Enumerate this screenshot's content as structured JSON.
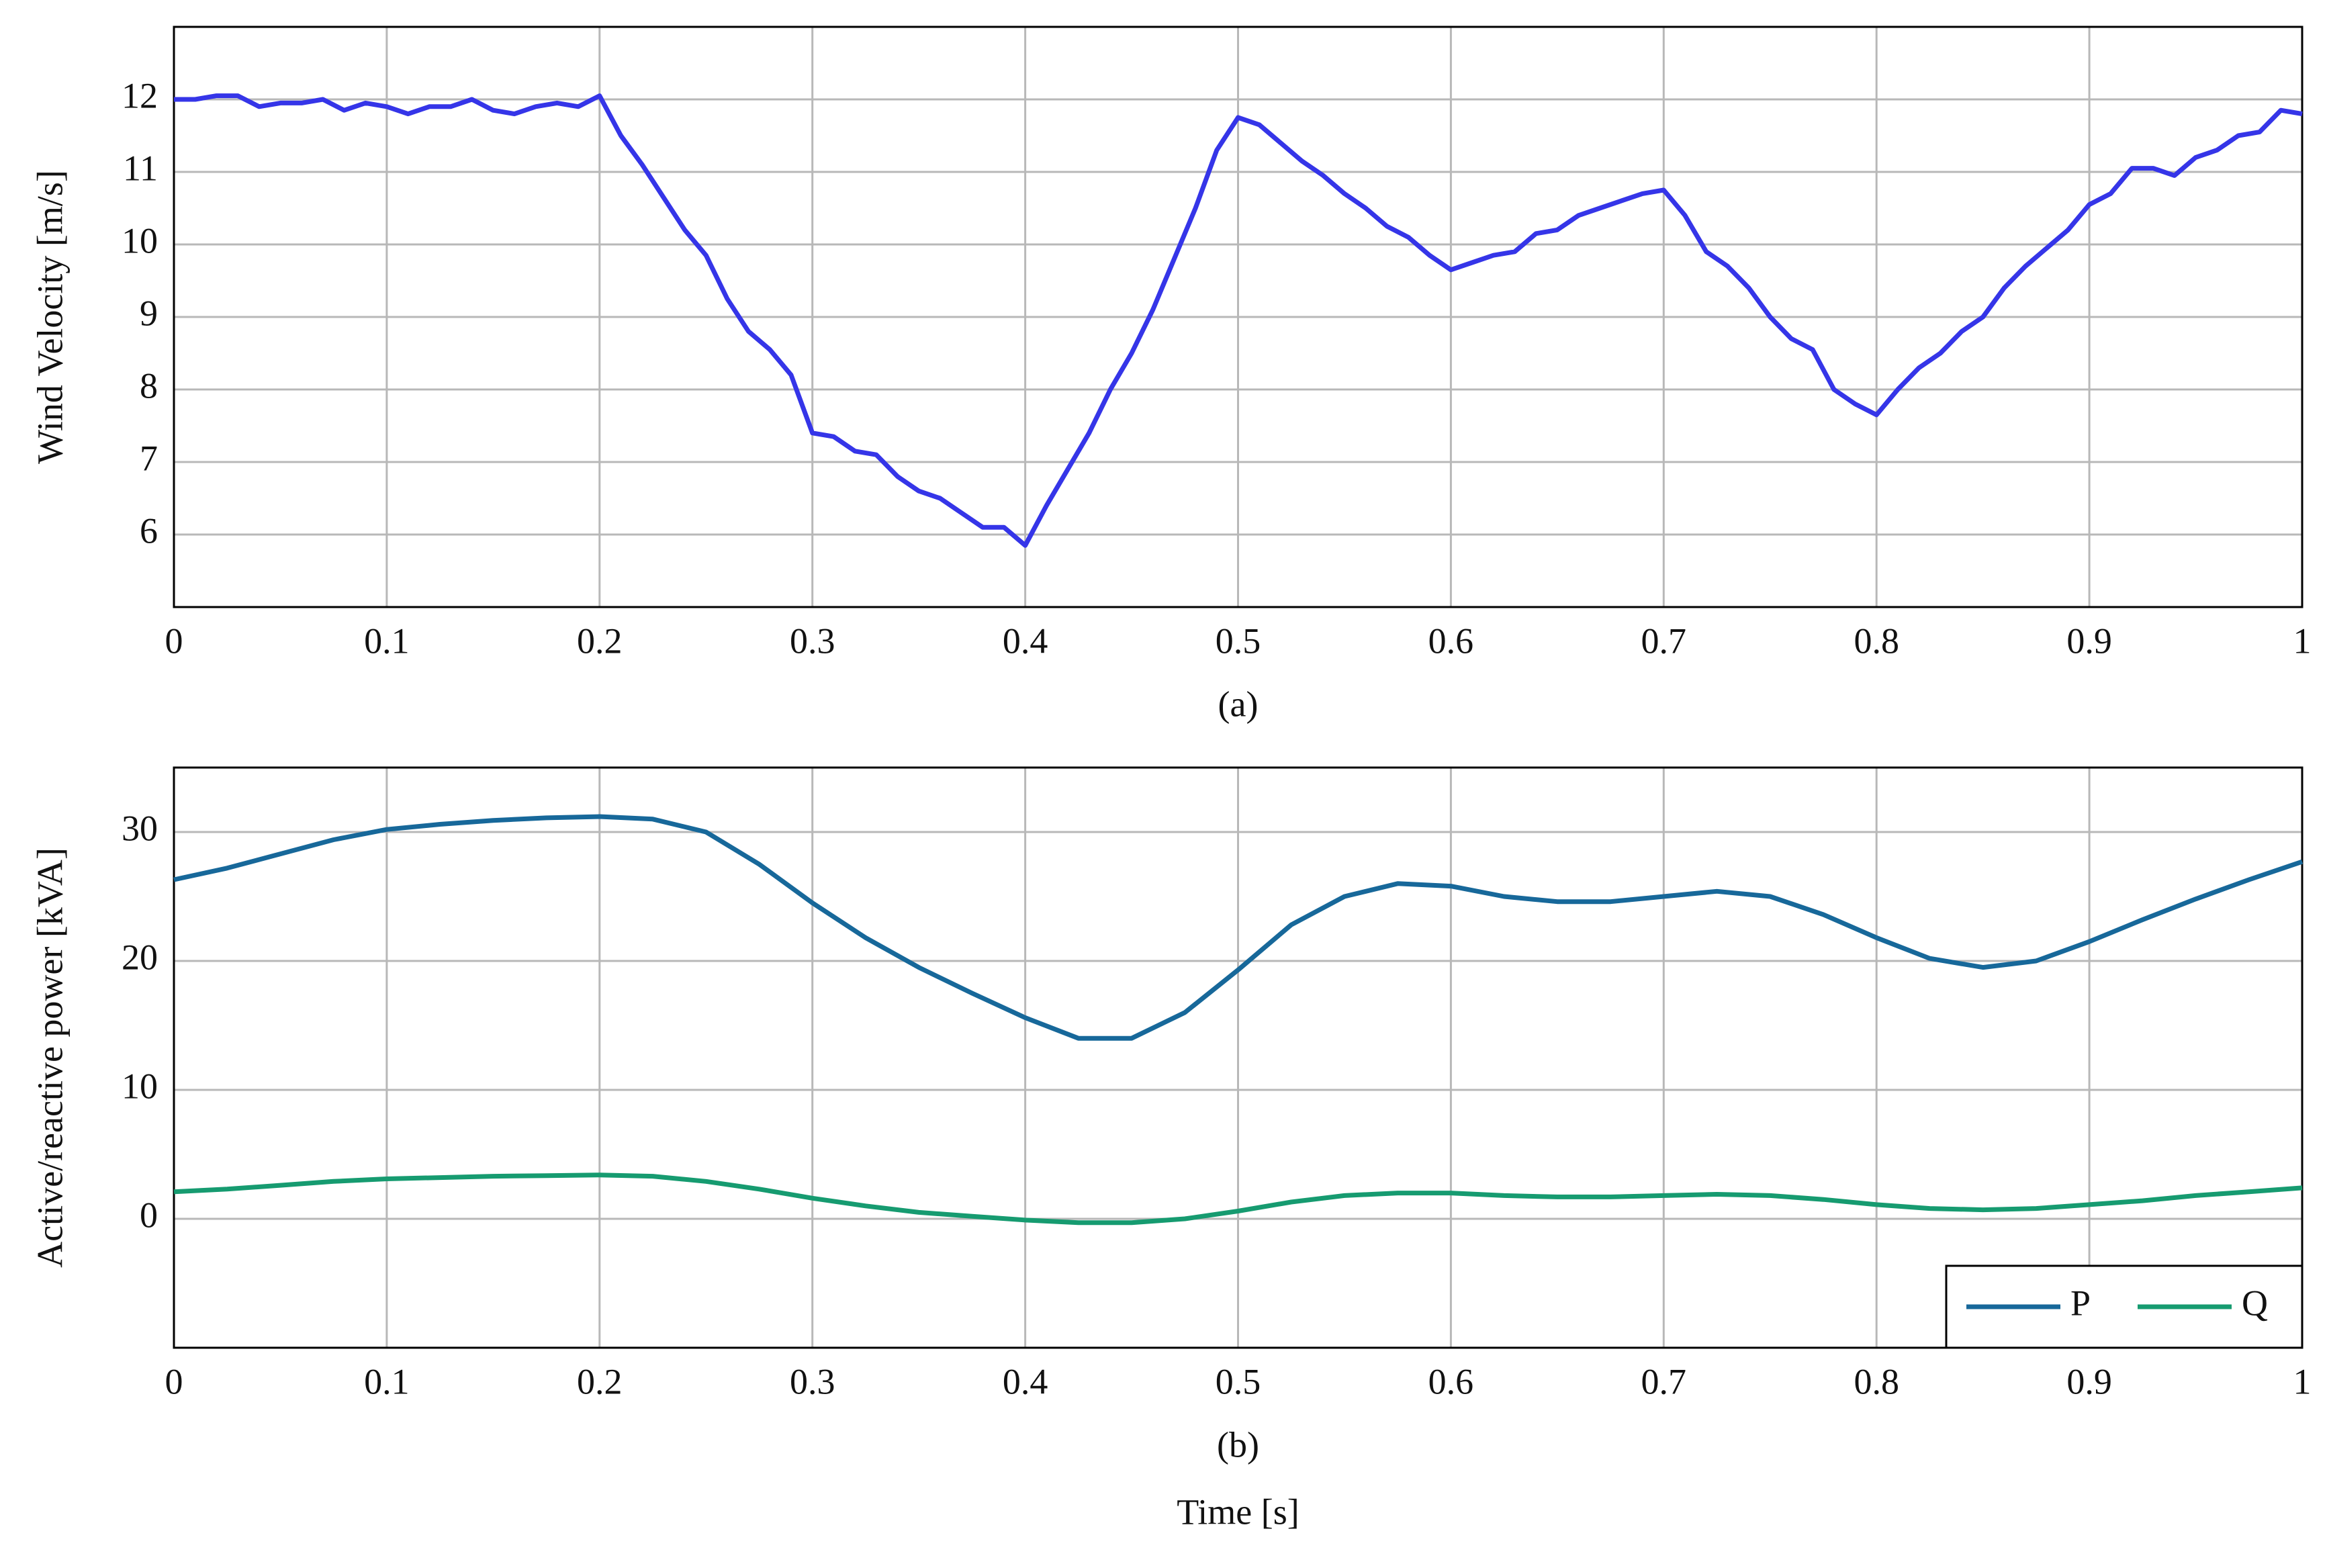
{
  "chart_data": [
    {
      "type": "line",
      "caption": "(a)",
      "ylabel": "Wind Velocity [m/s]",
      "x": [
        0,
        0.01,
        0.02,
        0.03,
        0.04,
        0.05,
        0.06,
        0.07,
        0.08,
        0.09,
        0.1,
        0.11,
        0.12,
        0.13,
        0.14,
        0.15,
        0.16,
        0.17,
        0.18,
        0.19,
        0.2,
        0.21,
        0.22,
        0.23,
        0.24,
        0.25,
        0.26,
        0.27,
        0.28,
        0.29,
        0.3,
        0.31,
        0.32,
        0.33,
        0.34,
        0.35,
        0.36,
        0.37,
        0.38,
        0.39,
        0.4,
        0.41,
        0.42,
        0.43,
        0.44,
        0.45,
        0.46,
        0.47,
        0.48,
        0.49,
        0.5,
        0.51,
        0.52,
        0.53,
        0.54,
        0.55,
        0.56,
        0.57,
        0.58,
        0.59,
        0.6,
        0.61,
        0.62,
        0.63,
        0.64,
        0.65,
        0.66,
        0.67,
        0.68,
        0.69,
        0.7,
        0.71,
        0.72,
        0.73,
        0.74,
        0.75,
        0.76,
        0.77,
        0.78,
        0.79,
        0.8,
        0.81,
        0.82,
        0.83,
        0.84,
        0.85,
        0.86,
        0.87,
        0.88,
        0.89,
        0.9,
        0.91,
        0.92,
        0.93,
        0.94,
        0.95,
        0.96,
        0.97,
        0.98,
        0.99,
        1
      ],
      "values": [
        12.0,
        12.0,
        12.05,
        12.05,
        11.9,
        11.95,
        11.95,
        12.0,
        11.85,
        11.95,
        11.9,
        11.8,
        11.9,
        11.9,
        12.0,
        11.85,
        11.8,
        11.9,
        11.95,
        11.9,
        12.05,
        11.5,
        11.1,
        10.65,
        10.2,
        9.85,
        9.25,
        8.8,
        8.55,
        8.2,
        7.4,
        7.35,
        7.15,
        7.1,
        6.8,
        6.6,
        6.5,
        6.3,
        6.1,
        6.1,
        5.85,
        6.4,
        6.9,
        7.4,
        8.0,
        8.5,
        9.1,
        9.8,
        10.5,
        11.3,
        11.75,
        11.65,
        11.4,
        11.15,
        10.95,
        10.7,
        10.5,
        10.25,
        10.1,
        9.85,
        9.65,
        9.75,
        9.85,
        9.9,
        10.15,
        10.2,
        10.4,
        10.5,
        10.6,
        10.7,
        10.75,
        10.4,
        9.9,
        9.7,
        9.4,
        9.0,
        8.7,
        8.55,
        8.0,
        7.8,
        7.65,
        8.0,
        8.3,
        8.5,
        8.8,
        9.0,
        9.4,
        9.7,
        9.95,
        10.2,
        10.55,
        10.7,
        11.05,
        11.05,
        10.95,
        11.2,
        11.3,
        11.5,
        11.55,
        11.85,
        11.8
      ],
      "color": "#3535e8",
      "xlim": [
        0,
        1
      ],
      "ylim": [
        5,
        13
      ],
      "xticks": [
        0,
        0.1,
        0.2,
        0.3,
        0.4,
        0.5,
        0.6,
        0.7,
        0.8,
        0.9,
        1
      ],
      "yticks": [
        6,
        7,
        8,
        9,
        10,
        11,
        12
      ],
      "grid": true
    },
    {
      "type": "line",
      "caption": "(b)",
      "ylabel": "Active/reactive power [kVA]",
      "xlabel": "Time [s]",
      "x": [
        0,
        0.025,
        0.05,
        0.075,
        0.1,
        0.125,
        0.15,
        0.175,
        0.2,
        0.225,
        0.25,
        0.275,
        0.3,
        0.325,
        0.35,
        0.375,
        0.4,
        0.425,
        0.45,
        0.475,
        0.5,
        0.525,
        0.55,
        0.575,
        0.6,
        0.625,
        0.65,
        0.675,
        0.7,
        0.725,
        0.75,
        0.775,
        0.8,
        0.825,
        0.85,
        0.875,
        0.9,
        0.925,
        0.95,
        0.975,
        1
      ],
      "series": [
        {
          "name": "P",
          "color": "#17689a",
          "values": [
            26.3,
            27.2,
            28.3,
            29.4,
            30.2,
            30.6,
            30.9,
            31.1,
            31.2,
            31.0,
            30.0,
            27.5,
            24.5,
            21.8,
            19.5,
            17.5,
            15.6,
            14.0,
            14.0,
            16.0,
            19.3,
            22.8,
            25.0,
            26.0,
            25.8,
            25.0,
            24.6,
            24.6,
            25.0,
            25.4,
            25.0,
            23.6,
            21.8,
            20.2,
            19.5,
            20.0,
            21.5,
            23.2,
            24.8,
            26.3,
            27.7
          ]
        },
        {
          "name": "Q",
          "color": "#169b70",
          "values": [
            2.1,
            2.3,
            2.6,
            2.9,
            3.1,
            3.2,
            3.3,
            3.35,
            3.4,
            3.3,
            2.9,
            2.3,
            1.6,
            1.0,
            0.5,
            0.2,
            -0.1,
            -0.3,
            -0.3,
            0.0,
            0.6,
            1.3,
            1.8,
            2.0,
            2.0,
            1.8,
            1.7,
            1.7,
            1.8,
            1.9,
            1.8,
            1.5,
            1.1,
            0.8,
            0.7,
            0.8,
            1.1,
            1.4,
            1.8,
            2.1,
            2.4
          ]
        }
      ],
      "xlim": [
        0,
        1
      ],
      "ylim": [
        -10,
        35
      ],
      "xticks": [
        0,
        0.1,
        0.2,
        0.3,
        0.4,
        0.5,
        0.6,
        0.7,
        0.8,
        0.9,
        1
      ],
      "yticks": [
        0,
        10,
        20,
        30
      ],
      "grid": true,
      "legend": "lower right"
    }
  ]
}
